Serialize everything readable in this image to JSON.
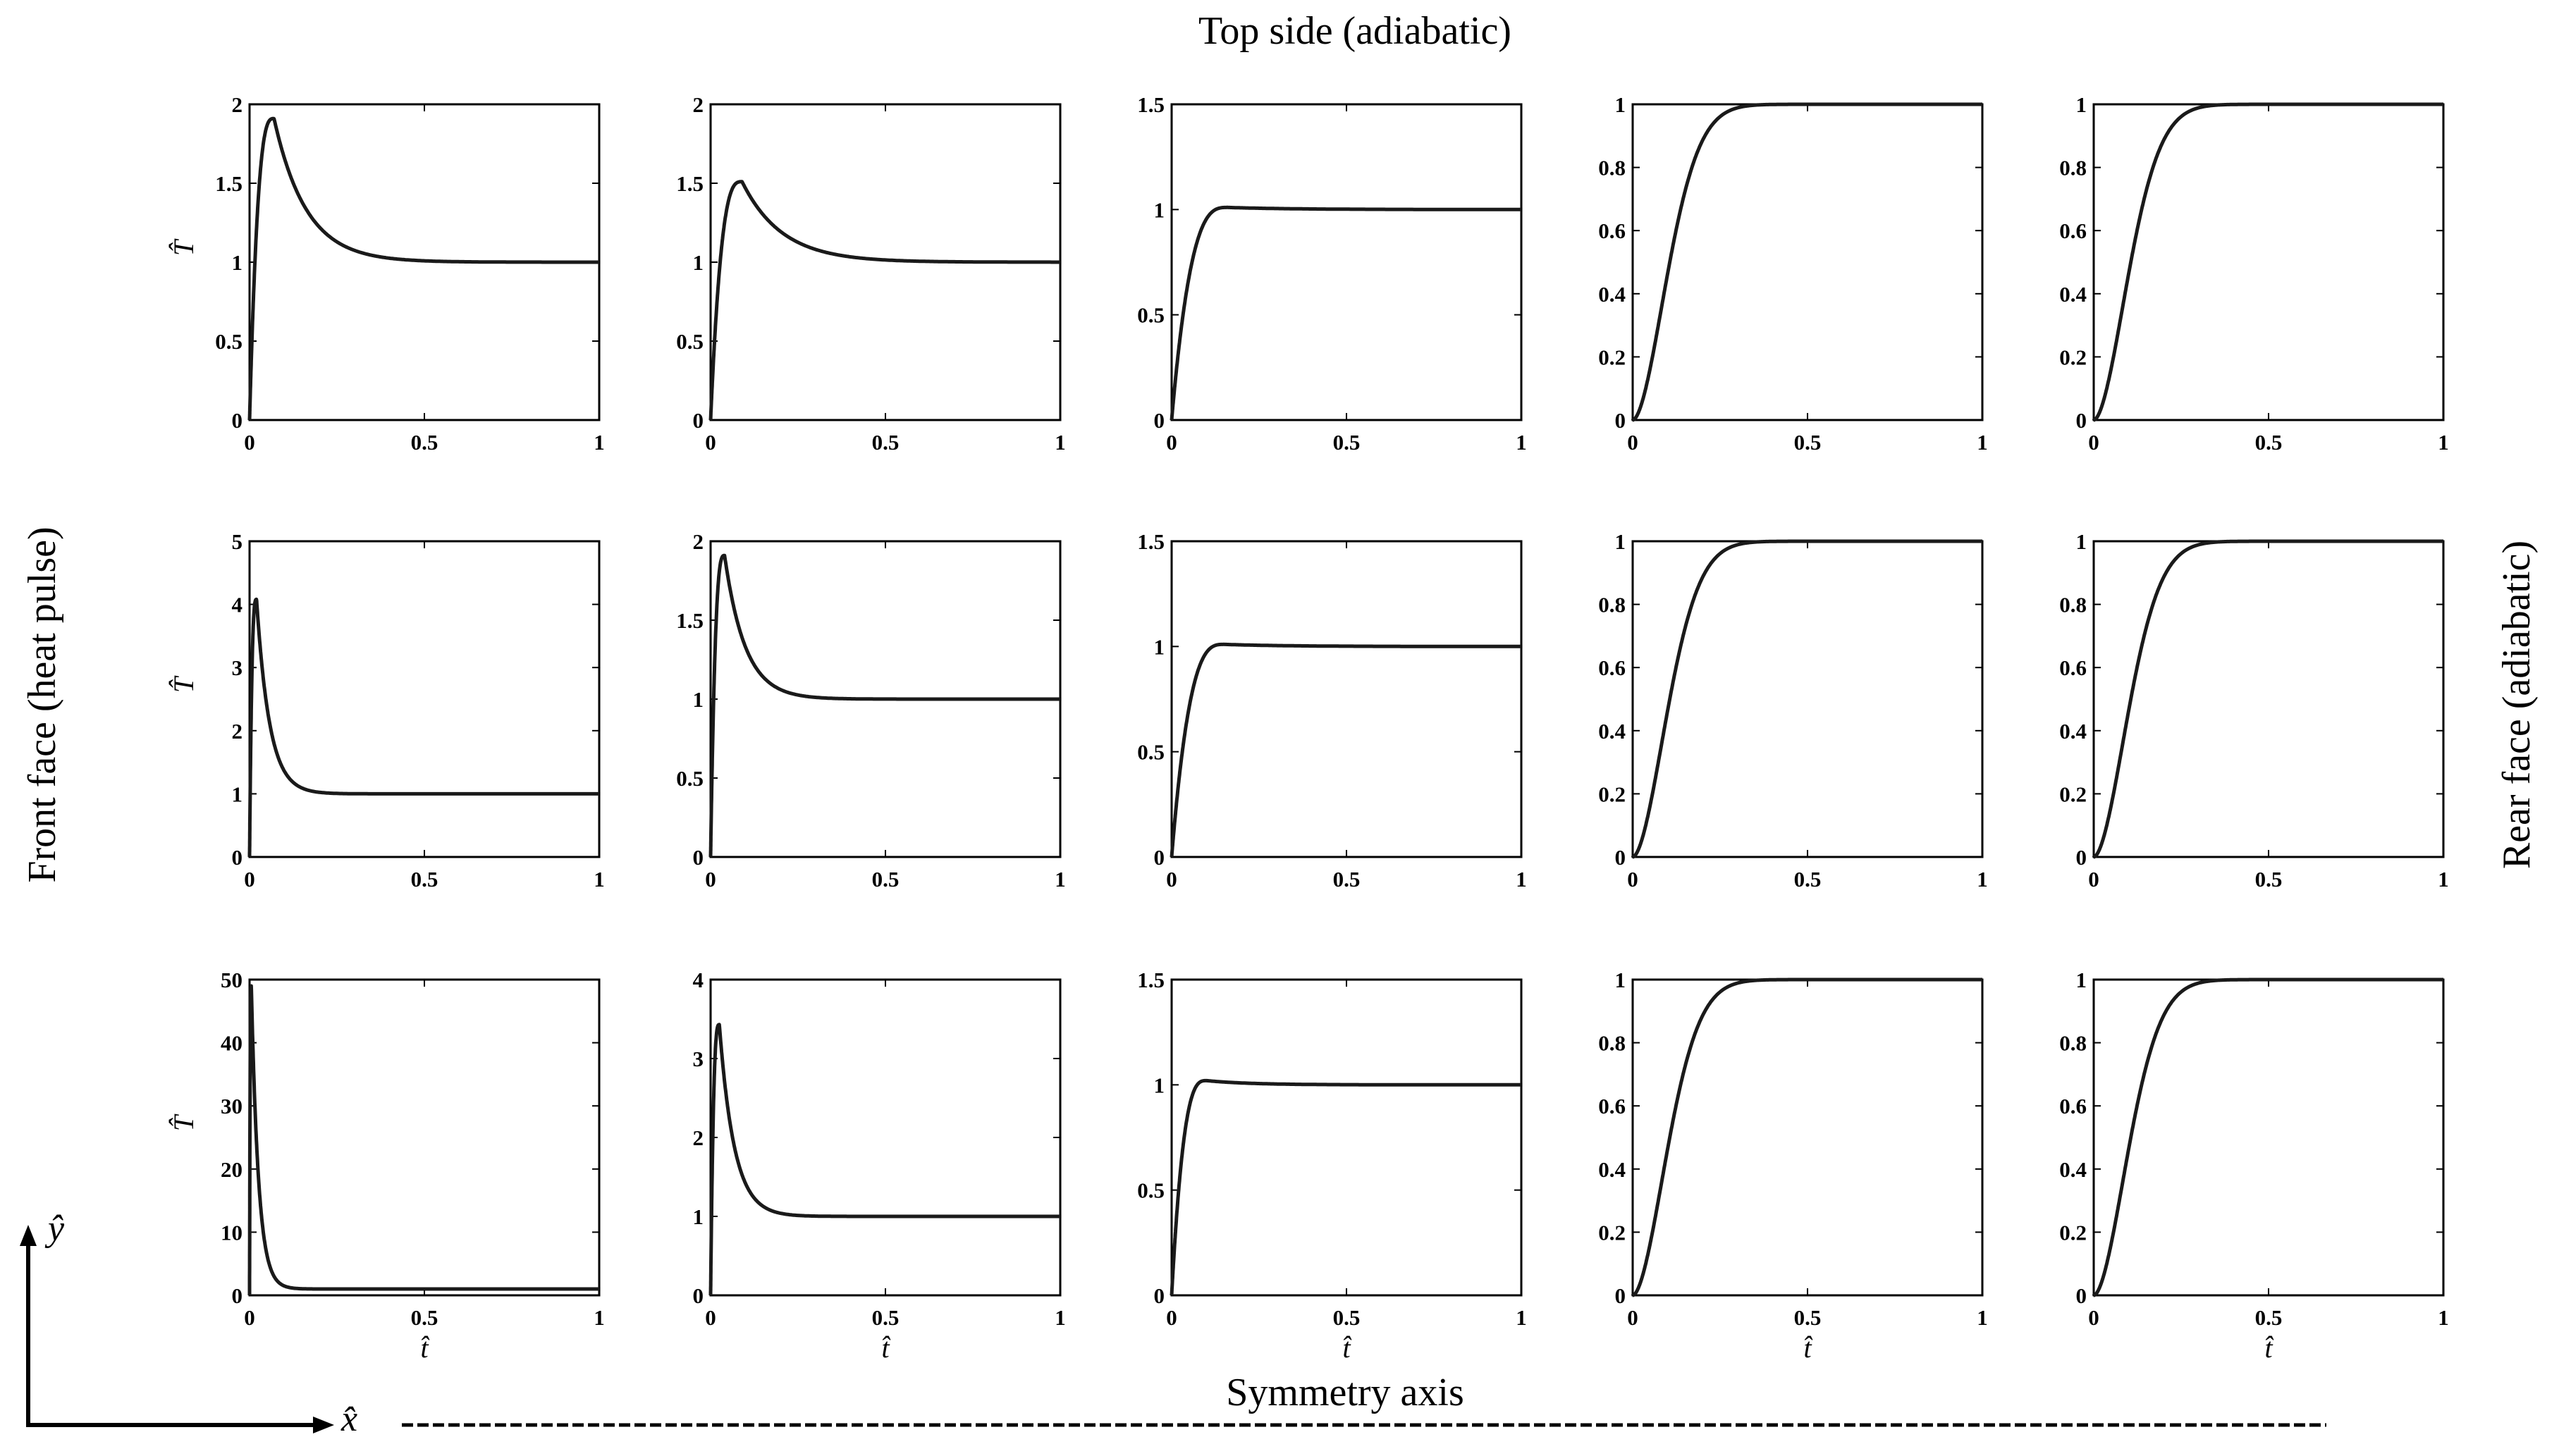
{
  "figure": {
    "top_label": "Top side (adiabatic)",
    "left_label": "Front face (heat pulse)",
    "right_label": "Rear face (adiabatic)",
    "bottom_label": "Symmetry axis",
    "y_axis_symbol": "ŷ",
    "x_axis_symbol": "x̂",
    "panel_ylabel": "T̂",
    "panel_xlabel": "t̂",
    "line_color": "#1a1a1a"
  },
  "chart_data": [
    {
      "type": "line",
      "row": 1,
      "col": 1,
      "xlim": [
        0,
        1
      ],
      "ylim": [
        0,
        2
      ],
      "xticks": [
        "0",
        "0.5",
        "1"
      ],
      "yticks": [
        "0",
        "0.5",
        "1",
        "1.5",
        "2"
      ],
      "ylabel": "T̂",
      "xlabel": "",
      "curve": {
        "kind": "peak",
        "peak_t": 0.07,
        "peak_v": 1.91,
        "final": 1.0
      }
    },
    {
      "type": "line",
      "row": 1,
      "col": 2,
      "xlim": [
        0,
        1
      ],
      "ylim": [
        0,
        2
      ],
      "xticks": [
        "0",
        "0.5",
        "1"
      ],
      "yticks": [
        "0",
        "0.5",
        "1",
        "1.5",
        "2"
      ],
      "ylabel": "",
      "xlabel": "",
      "curve": {
        "kind": "peak",
        "peak_t": 0.09,
        "peak_v": 1.51,
        "final": 1.0
      }
    },
    {
      "type": "line",
      "row": 1,
      "col": 3,
      "xlim": [
        0,
        1
      ],
      "ylim": [
        0,
        1.5
      ],
      "xticks": [
        "0",
        "0.5",
        "1"
      ],
      "yticks": [
        "0",
        "0.5",
        "1",
        "1.5"
      ],
      "ylabel": "",
      "xlabel": "",
      "curve": {
        "kind": "peak",
        "peak_t": 0.16,
        "peak_v": 1.01,
        "final": 1.0
      }
    },
    {
      "type": "line",
      "row": 1,
      "col": 4,
      "xlim": [
        0,
        1
      ],
      "ylim": [
        0,
        1
      ],
      "xticks": [
        "0",
        "0.5",
        "1"
      ],
      "yticks": [
        "0",
        "0.2",
        "0.4",
        "0.6",
        "0.8",
        "1"
      ],
      "ylabel": "",
      "xlabel": "",
      "curve": {
        "kind": "rise",
        "final": 1.0
      }
    },
    {
      "type": "line",
      "row": 1,
      "col": 5,
      "xlim": [
        0,
        1
      ],
      "ylim": [
        0,
        1
      ],
      "xticks": [
        "0",
        "0.5",
        "1"
      ],
      "yticks": [
        "0",
        "0.2",
        "0.4",
        "0.6",
        "0.8",
        "1"
      ],
      "ylabel": "",
      "xlabel": "",
      "curve": {
        "kind": "rise",
        "final": 1.0
      }
    },
    {
      "type": "line",
      "row": 2,
      "col": 1,
      "xlim": [
        0,
        1
      ],
      "ylim": [
        0,
        5
      ],
      "xticks": [
        "0",
        "0.5",
        "1"
      ],
      "yticks": [
        "0",
        "1",
        "2",
        "3",
        "4",
        "5"
      ],
      "ylabel": "T̂",
      "xlabel": "",
      "curve": {
        "kind": "peak",
        "peak_t": 0.02,
        "peak_v": 4.08,
        "final": 1.0
      }
    },
    {
      "type": "line",
      "row": 2,
      "col": 2,
      "xlim": [
        0,
        1
      ],
      "ylim": [
        0,
        2
      ],
      "xticks": [
        "0",
        "0.5",
        "1"
      ],
      "yticks": [
        "0",
        "0.5",
        "1",
        "1.5",
        "2"
      ],
      "ylabel": "",
      "xlabel": "",
      "curve": {
        "kind": "peak",
        "peak_t": 0.04,
        "peak_v": 1.91,
        "final": 1.0
      }
    },
    {
      "type": "line",
      "row": 2,
      "col": 3,
      "xlim": [
        0,
        1
      ],
      "ylim": [
        0,
        1.5
      ],
      "xticks": [
        "0",
        "0.5",
        "1"
      ],
      "yticks": [
        "0",
        "0.5",
        "1",
        "1.5"
      ],
      "ylabel": "",
      "xlabel": "",
      "curve": {
        "kind": "peak",
        "peak_t": 0.15,
        "peak_v": 1.01,
        "final": 1.0
      }
    },
    {
      "type": "line",
      "row": 2,
      "col": 4,
      "xlim": [
        0,
        1
      ],
      "ylim": [
        0,
        1
      ],
      "xticks": [
        "0",
        "0.5",
        "1"
      ],
      "yticks": [
        "0",
        "0.2",
        "0.4",
        "0.6",
        "0.8",
        "1"
      ],
      "ylabel": "",
      "xlabel": "",
      "curve": {
        "kind": "rise",
        "final": 1.0
      }
    },
    {
      "type": "line",
      "row": 2,
      "col": 5,
      "xlim": [
        0,
        1
      ],
      "ylim": [
        0,
        1
      ],
      "xticks": [
        "0",
        "0.5",
        "1"
      ],
      "yticks": [
        "0",
        "0.2",
        "0.4",
        "0.6",
        "0.8",
        "1"
      ],
      "ylabel": "",
      "xlabel": "",
      "curve": {
        "kind": "rise",
        "final": 1.0
      }
    },
    {
      "type": "line",
      "row": 3,
      "col": 1,
      "xlim": [
        0,
        1
      ],
      "ylim": [
        0,
        50
      ],
      "xticks": [
        "0",
        "0.5",
        "1"
      ],
      "yticks": [
        "0",
        "10",
        "20",
        "30",
        "40",
        "50"
      ],
      "ylabel": "T̂",
      "xlabel": "t̂",
      "curve": {
        "kind": "peak",
        "peak_t": 0.005,
        "peak_v": 49,
        "final": 1.0
      }
    },
    {
      "type": "line",
      "row": 3,
      "col": 2,
      "xlim": [
        0,
        1
      ],
      "ylim": [
        0,
        4
      ],
      "xticks": [
        "0",
        "0.5",
        "1"
      ],
      "yticks": [
        "0",
        "1",
        "2",
        "3",
        "4"
      ],
      "ylabel": "",
      "xlabel": "t̂",
      "curve": {
        "kind": "peak",
        "peak_t": 0.025,
        "peak_v": 3.43,
        "final": 1.0
      }
    },
    {
      "type": "line",
      "row": 3,
      "col": 3,
      "xlim": [
        0,
        1
      ],
      "ylim": [
        0,
        1.5
      ],
      "xticks": [
        "0",
        "0.5",
        "1"
      ],
      "yticks": [
        "0",
        "0.5",
        "1",
        "1.5"
      ],
      "ylabel": "",
      "xlabel": "t̂",
      "curve": {
        "kind": "peak",
        "peak_t": 0.1,
        "peak_v": 1.02,
        "final": 1.0
      }
    },
    {
      "type": "line",
      "row": 3,
      "col": 4,
      "xlim": [
        0,
        1
      ],
      "ylim": [
        0,
        1
      ],
      "xticks": [
        "0",
        "0.5",
        "1"
      ],
      "yticks": [
        "0",
        "0.2",
        "0.4",
        "0.6",
        "0.8",
        "1"
      ],
      "ylabel": "",
      "xlabel": "t̂",
      "curve": {
        "kind": "rise",
        "final": 1.0
      }
    },
    {
      "type": "line",
      "row": 3,
      "col": 5,
      "xlim": [
        0,
        1
      ],
      "ylim": [
        0,
        1
      ],
      "xticks": [
        "0",
        "0.5",
        "1"
      ],
      "yticks": [
        "0",
        "0.2",
        "0.4",
        "0.6",
        "0.8",
        "1"
      ],
      "ylabel": "",
      "xlabel": "t̂",
      "curve": {
        "kind": "rise",
        "final": 1.0
      }
    }
  ]
}
